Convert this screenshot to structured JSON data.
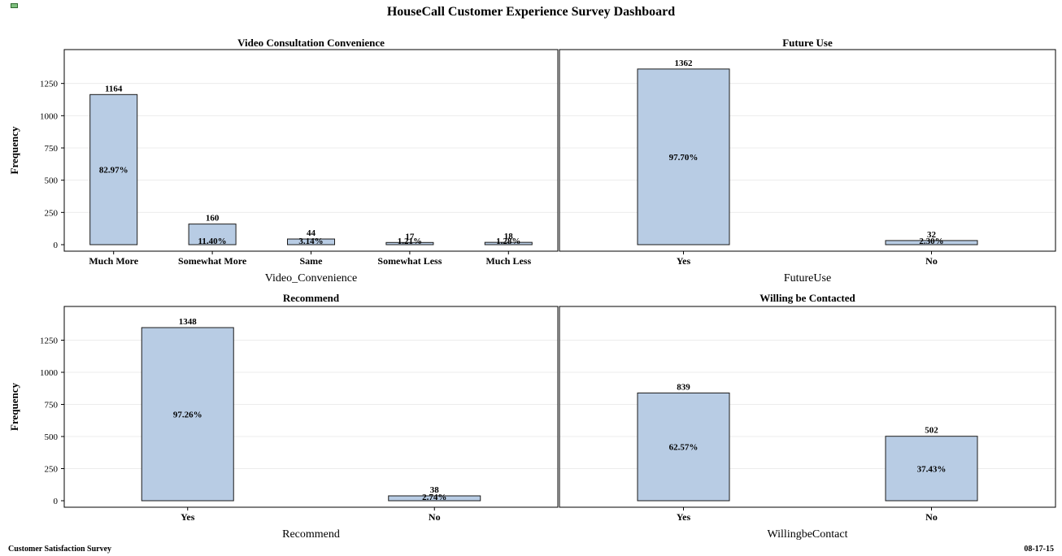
{
  "page": {
    "title": "HouseCall Customer Experience Survey Dashboard",
    "footer_left": "Customer Satisfaction Survey",
    "footer_right": "08-17-15",
    "corner_icon": "sas-output-icon"
  },
  "colors": {
    "bar_fill": "#b8cce4",
    "bar_stroke": "#1a1a1a",
    "grid": "#ececec",
    "frame": "#000000"
  },
  "chart_data": [
    {
      "type": "bar",
      "title": "Video Consultation Convenience",
      "xlabel": "Video_Convenience",
      "ylabel": "Frequency",
      "ylim": [
        0,
        1500
      ],
      "yticks": [
        "0",
        "250",
        "500",
        "750",
        "1000",
        "1250"
      ],
      "categories": [
        "Much More",
        "Somewhat More",
        "Same",
        "Somewhat Less",
        "Much Less"
      ],
      "values": [
        1164,
        160,
        44,
        17,
        18
      ],
      "value_labels": [
        "1164",
        "160",
        "44",
        "17",
        "18"
      ],
      "percent_labels": [
        "82.97%",
        "11.40%",
        "3.14%",
        "1.21%",
        "1.28%"
      ]
    },
    {
      "type": "bar",
      "title": "Future Use",
      "xlabel": "FutureUse",
      "ylabel": "",
      "ylim": [
        0,
        1500
      ],
      "yticks": [],
      "categories": [
        "Yes",
        "No"
      ],
      "values": [
        1362,
        32
      ],
      "value_labels": [
        "1362",
        "32"
      ],
      "percent_labels": [
        "97.70%",
        "2.30%"
      ]
    },
    {
      "type": "bar",
      "title": "Recommend",
      "xlabel": "Recommend",
      "ylabel": "Frequency",
      "ylim": [
        0,
        1500
      ],
      "yticks": [
        "0",
        "250",
        "500",
        "750",
        "1000",
        "1250"
      ],
      "categories": [
        "Yes",
        "No"
      ],
      "values": [
        1348,
        38
      ],
      "value_labels": [
        "1348",
        "38"
      ],
      "percent_labels": [
        "97.26%",
        "2.74%"
      ]
    },
    {
      "type": "bar",
      "title": "Willing be Contacted",
      "xlabel": "WillingbeContact",
      "ylabel": "",
      "ylim": [
        0,
        1500
      ],
      "yticks": [],
      "categories": [
        "Yes",
        "No"
      ],
      "values": [
        839,
        502
      ],
      "value_labels": [
        "839",
        "502"
      ],
      "percent_labels": [
        "62.57%",
        "37.43%"
      ]
    }
  ]
}
